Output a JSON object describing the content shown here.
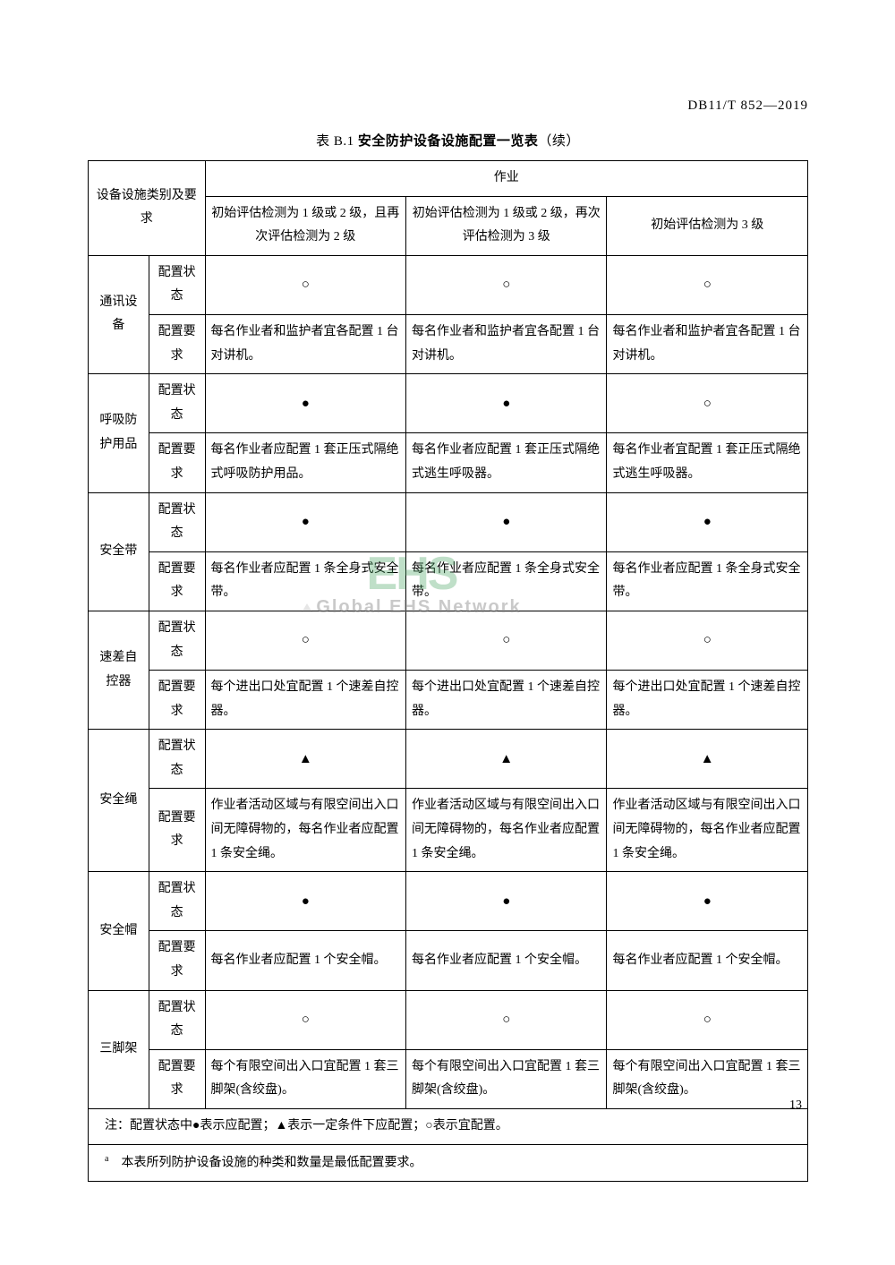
{
  "doc_code": "DB11/T 852—2019",
  "title_prefix": "表 B.1 ",
  "title_bold": "安全防护设备设施配置一览表",
  "title_suffix": "（续）",
  "page_number": "13",
  "watermark_logo": "EHS",
  "watermark_text": "Global EHS Network",
  "symbols": {
    "circle": "○",
    "dot": "●",
    "triangle": "▲"
  },
  "headers": {
    "col_cat": "设备设施类别及要求",
    "col_op": "作业",
    "op1": "初始评估检测为 1 级或 2 级，且再次评估检测为 2 级",
    "op2": "初始评估检测为 1 级或 2 级，再次评估检测为 3 级",
    "op3": "初始评估检测为 3 级"
  },
  "sub_labels": {
    "status": "配置状态",
    "req": "配置要求"
  },
  "rows": [
    {
      "name": "通讯设备",
      "status": [
        "○",
        "○",
        "○"
      ],
      "req": [
        "每名作业者和监护者宜各配置 1 台对讲机。",
        "每名作业者和监护者宜各配置 1 台对讲机。",
        "每名作业者和监护者宜各配置 1 台对讲机。"
      ]
    },
    {
      "name": "呼吸防护用品",
      "status": [
        "●",
        "●",
        "○"
      ],
      "req": [
        "每名作业者应配置 1 套正压式隔绝式呼吸防护用品。",
        "每名作业者应配置 1 套正压式隔绝式逃生呼吸器。",
        "每名作业者宜配置 1 套正压式隔绝式逃生呼吸器。"
      ]
    },
    {
      "name": "安全带",
      "status": [
        "●",
        "●",
        "●"
      ],
      "req": [
        "每名作业者应配置 1 条全身式安全带。",
        "每名作业者应配置 1 条全身式安全带。",
        "每名作业者应配置 1 条全身式安全带。"
      ]
    },
    {
      "name": "速差自控器",
      "status": [
        "○",
        "○",
        "○"
      ],
      "req": [
        "每个进出口处宜配置 1 个速差自控器。",
        "每个进出口处宜配置 1 个速差自控器。",
        "每个进出口处宜配置 1 个速差自控器。"
      ]
    },
    {
      "name": "安全绳",
      "status": [
        "▲",
        "▲",
        "▲"
      ],
      "req": [
        "作业者活动区域与有限空间出入口间无障碍物的，每名作业者应配置 1 条安全绳。",
        "作业者活动区域与有限空间出入口间无障碍物的，每名作业者应配置 1 条安全绳。",
        "作业者活动区域与有限空间出入口间无障碍物的，每名作业者应配置 1 条安全绳。"
      ]
    },
    {
      "name": "安全帽",
      "status": [
        "●",
        "●",
        "●"
      ],
      "req": [
        "每名作业者应配置 1 个安全帽。",
        "每名作业者应配置 1 个安全帽。",
        "每名作业者应配置 1 个安全帽。"
      ]
    },
    {
      "name": "三脚架",
      "status": [
        "○",
        "○",
        "○"
      ],
      "req": [
        "每个有限空间出入口宜配置 1 套三脚架(含绞盘)。",
        "每个有限空间出入口宜配置 1 套三脚架(含绞盘)。",
        "每个有限空间出入口宜配置 1 套三脚架(含绞盘)。"
      ]
    }
  ],
  "note": "注：配置状态中●表示应配置；▲表示一定条件下应配置；○表示宜配置。",
  "footnote_mark": "a",
  "footnote": "本表所列防护设备设施的种类和数量是最低配置要求。",
  "col_widths": {
    "cat1": 65,
    "cat2": 60,
    "op1": 215,
    "op2": 215,
    "op3": 215
  },
  "colors": {
    "text": "#000000",
    "bg": "#ffffff",
    "border": "#000000",
    "watermark_green": "#4aa564",
    "watermark_gray": "#888888"
  }
}
